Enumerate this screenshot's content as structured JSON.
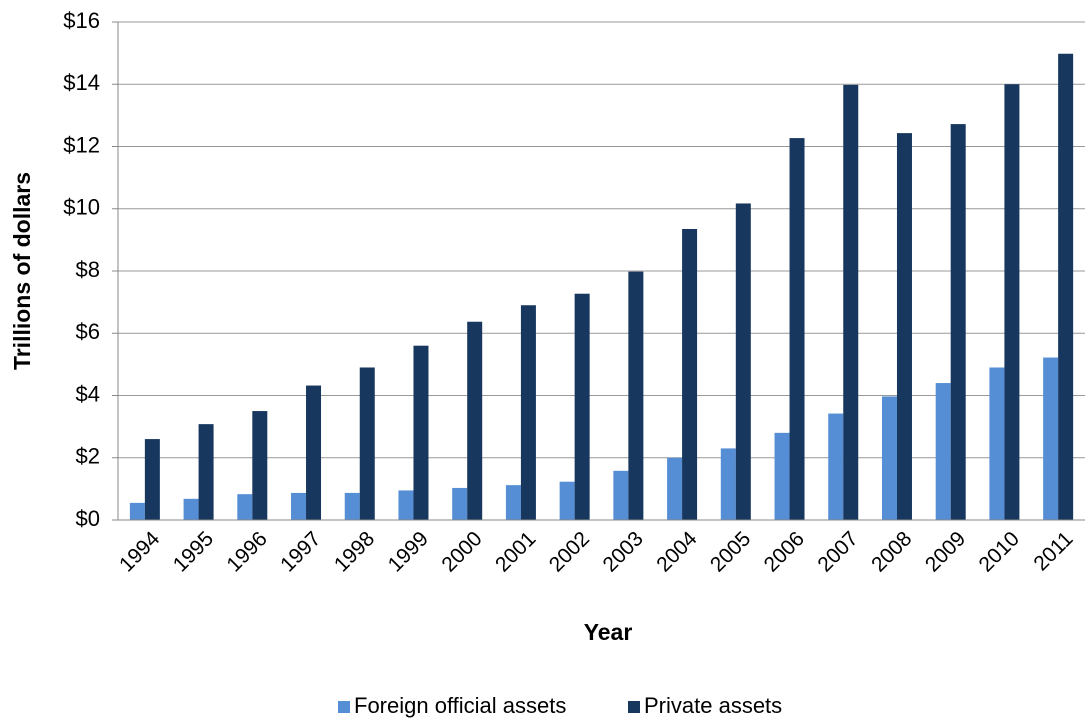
{
  "chart_data": {
    "type": "bar",
    "y_label": "Trillions of dollars",
    "x_label": "Year",
    "categories": [
      "1994",
      "1995",
      "1996",
      "1997",
      "1998",
      "1999",
      "2000",
      "2001",
      "2002",
      "2003",
      "2004",
      "2005",
      "2006",
      "2007",
      "2008",
      "2009",
      "2010",
      "2011"
    ],
    "series": [
      {
        "name": "Foreign official assets",
        "color": "#558ed5",
        "values": [
          0.55,
          0.68,
          0.83,
          0.87,
          0.87,
          0.95,
          1.03,
          1.12,
          1.23,
          1.58,
          2.0,
          2.3,
          2.8,
          3.42,
          3.97,
          4.4,
          4.9,
          5.22
        ]
      },
      {
        "name": "Private assets",
        "color": "#17375e",
        "values": [
          2.6,
          3.08,
          3.5,
          4.32,
          4.9,
          5.6,
          6.37,
          6.9,
          7.27,
          7.98,
          9.35,
          10.17,
          12.27,
          13.98,
          12.43,
          12.72,
          14.0,
          14.98
        ]
      }
    ],
    "ylim": [
      0,
      16
    ],
    "yticks": [
      {
        "value": 0,
        "label": "$0"
      },
      {
        "value": 2,
        "label": "$2"
      },
      {
        "value": 4,
        "label": "$4"
      },
      {
        "value": 6,
        "label": "$6"
      },
      {
        "value": 8,
        "label": "$8"
      },
      {
        "value": 10,
        "label": "$10"
      },
      {
        "value": 12,
        "label": "$12"
      },
      {
        "value": 14,
        "label": "$14"
      },
      {
        "value": 16,
        "label": "$16"
      }
    ],
    "grid": true,
    "legend": "bottom"
  }
}
